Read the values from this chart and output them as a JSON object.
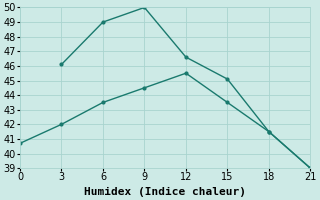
{
  "line1_x": [
    0,
    3,
    6,
    9,
    12,
    15,
    18,
    21
  ],
  "line1_y": [
    40.7,
    42.0,
    43.5,
    44.5,
    45.5,
    43.5,
    41.5,
    39.0
  ],
  "line2_x": [
    3,
    6,
    9,
    12,
    15,
    18,
    21
  ],
  "line2_y": [
    46.1,
    49.0,
    50.0,
    46.6,
    45.1,
    41.5,
    39.0
  ],
  "line_color": "#1a7a6e",
  "bg_color": "#cdeae6",
  "grid_color": "#a8d4cf",
  "xlabel": "Humidex (Indice chaleur)",
  "ylim": [
    39,
    50
  ],
  "xlim": [
    0,
    21
  ],
  "xticks": [
    0,
    3,
    6,
    9,
    12,
    15,
    18,
    21
  ],
  "yticks": [
    39,
    40,
    41,
    42,
    43,
    44,
    45,
    46,
    47,
    48,
    49,
    50
  ],
  "xlabel_fontsize": 8,
  "tick_fontsize": 7,
  "figsize": [
    3.2,
    2.0
  ],
  "dpi": 100
}
